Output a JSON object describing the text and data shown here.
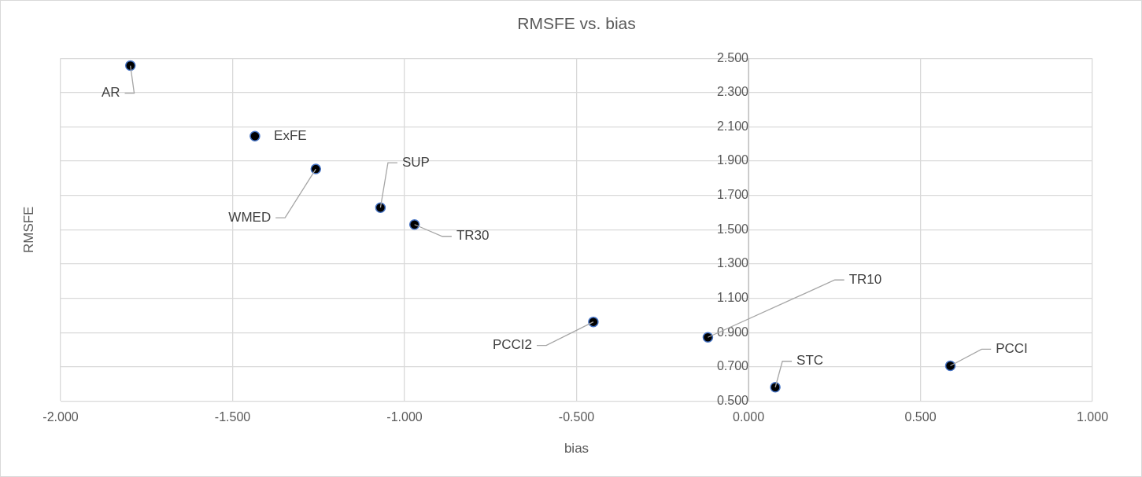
{
  "chart_data": {
    "type": "scatter",
    "title": "RMSFE vs. bias",
    "xlabel": "bias",
    "ylabel": "RMSFE",
    "x": [
      -1.797,
      -1.435,
      -1.258,
      -1.07,
      -0.971,
      -0.451,
      -0.118,
      0.078,
      0.587
    ],
    "series": [
      {
        "color": "#000000",
        "values": [
          2.457,
          2.046,
          1.854,
          1.629,
          1.53,
          0.962,
          0.872,
          0.581,
          0.706
        ]
      }
    ],
    "annotations": [
      {
        "text": "AR",
        "x": -1.797,
        "y": 2.457
      },
      {
        "text": "ExFE",
        "x": -1.435,
        "y": 2.046
      },
      {
        "text": "WMED",
        "x": -1.258,
        "y": 1.854
      },
      {
        "text": "SUP",
        "x": -1.07,
        "y": 1.629
      },
      {
        "text": "TR30",
        "x": -0.971,
        "y": 1.53
      },
      {
        "text": "PCCI2",
        "x": -0.451,
        "y": 0.962
      },
      {
        "text": "TR10",
        "x": -0.118,
        "y": 0.872
      },
      {
        "text": "STC",
        "x": 0.078,
        "y": 0.581
      },
      {
        "text": "PCCI",
        "x": 0.587,
        "y": 0.706
      }
    ],
    "xlim": [
      -2,
      1
    ],
    "xticks": [
      {
        "value": -2,
        "label": "-2.000"
      },
      {
        "value": -1.5,
        "label": "-1.500"
      },
      {
        "value": -1,
        "label": "-1.000"
      },
      {
        "value": -0.5,
        "label": "-0.500"
      },
      {
        "value": 0,
        "label": "0.000"
      },
      {
        "value": 0.5,
        "label": "0.500"
      },
      {
        "value": 1,
        "label": "1.000"
      }
    ],
    "ylim": [
      0.5,
      2.5
    ],
    "yticks": [
      {
        "value": 0.5,
        "label": "0.500"
      },
      {
        "value": 0.7,
        "label": "0.700"
      },
      {
        "value": 0.9,
        "label": "0.900"
      },
      {
        "value": 1.1,
        "label": "1.100"
      },
      {
        "value": 1.3,
        "label": "1.300"
      },
      {
        "value": 1.5,
        "label": "1.500"
      },
      {
        "value": 1.7,
        "label": "1.700"
      },
      {
        "value": 1.9,
        "label": "1.900"
      },
      {
        "value": 2.1,
        "label": "2.100"
      },
      {
        "value": 2.3,
        "label": "2.300"
      },
      {
        "value": 2.5,
        "label": "2.500"
      }
    ],
    "grid": true,
    "marker": "circle",
    "legend": false
  }
}
